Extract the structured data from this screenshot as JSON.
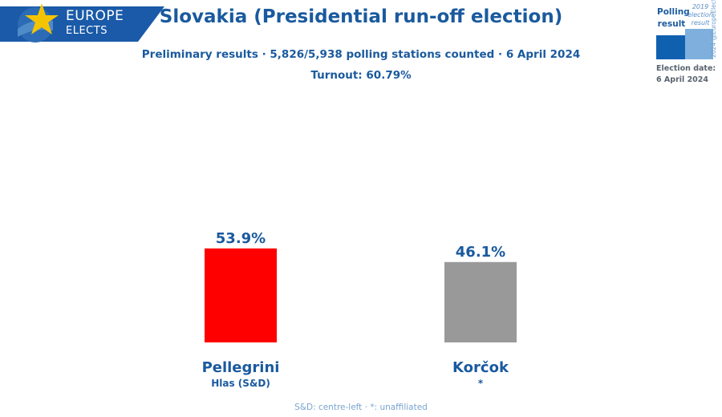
{
  "brand": {
    "line1": "EUROPE",
    "line2": "ELECTS",
    "banner_color": "#1a5aa8",
    "star_color": "#f5c400"
  },
  "header": {
    "title": "Slovakia (Presidential run-off election)",
    "subtitle": "Preliminary results · 5,826/5,938 polling stations counted · 6 April 2024",
    "turnout": "Turnout: 60.79%"
  },
  "legend": {
    "polling_label": "Polling result",
    "previous_label": "2019 election result",
    "credit": "2024 @EuropeElects",
    "date_label": "Election date:",
    "date_value": "6 April 2024"
  },
  "chart_data": {
    "type": "bar",
    "title": "Slovakia (Presidential run-off election)",
    "categories": [
      "Pellegrini",
      "Korčok"
    ],
    "parties": [
      "Hlas (S&D)",
      "*"
    ],
    "values": [
      53.9,
      46.1
    ],
    "value_labels": [
      "53.9%",
      "46.1%"
    ],
    "colors": [
      "#ff0000",
      "#999999"
    ],
    "ylim": [
      0,
      70
    ],
    "xlabel": "",
    "ylabel": "",
    "grid": false
  },
  "footer": {
    "note": "S&D: centre-left · *: unaffiliated"
  }
}
